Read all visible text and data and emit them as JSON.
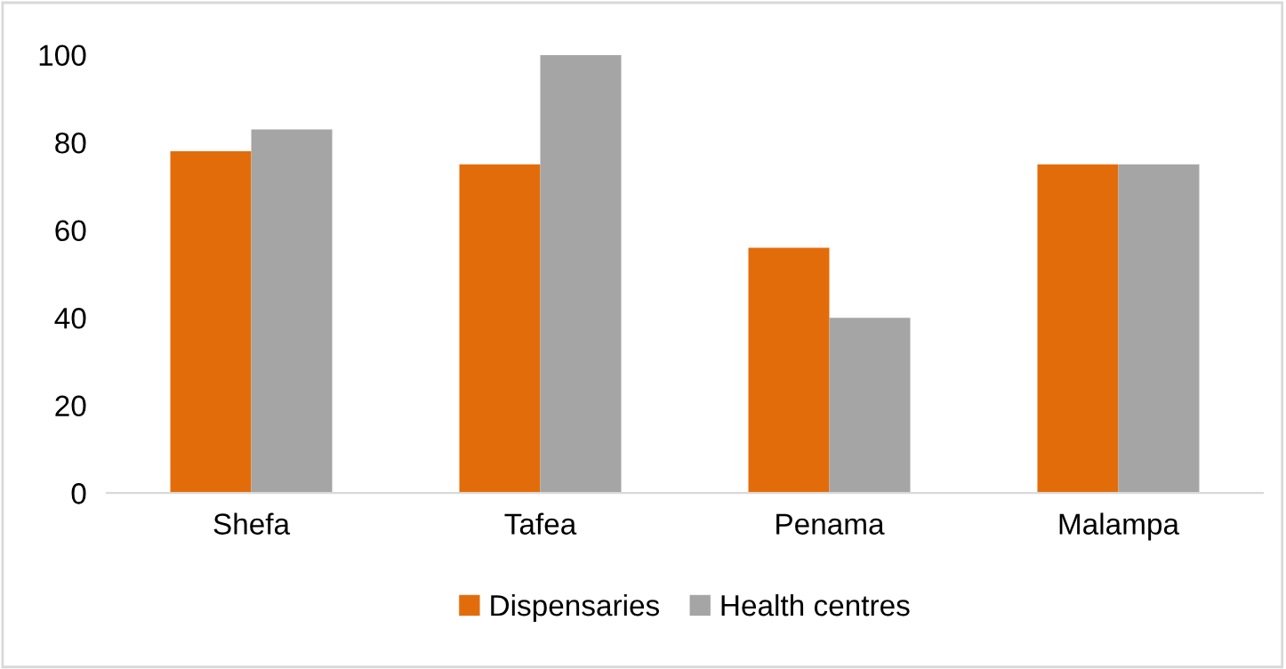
{
  "chart_data": {
    "type": "bar",
    "categories": [
      "Shefa",
      "Tafea",
      "Penama",
      "Malampa"
    ],
    "series": [
      {
        "name": "Dispensaries",
        "color": "#e36c0a",
        "values": [
          78,
          75,
          56,
          75
        ]
      },
      {
        "name": "Health centres",
        "color": "#a5a5a5",
        "values": [
          83,
          100,
          40,
          75
        ]
      }
    ],
    "ylim": [
      0,
      100
    ],
    "yticks": [
      0,
      20,
      40,
      60,
      80,
      100
    ],
    "grid": false,
    "legend": "bottom"
  }
}
